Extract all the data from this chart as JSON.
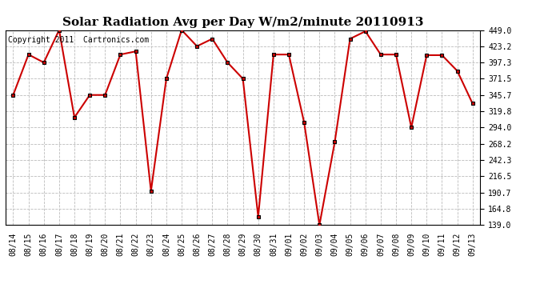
{
  "title": "Solar Radiation Avg per Day W/m2/minute 20110913",
  "copyright": "Copyright 2011  Cartronics.com",
  "x_labels": [
    "08/14",
    "08/15",
    "08/16",
    "08/17",
    "08/18",
    "08/19",
    "08/20",
    "08/21",
    "08/22",
    "08/23",
    "08/24",
    "08/25",
    "08/26",
    "08/27",
    "08/28",
    "08/29",
    "08/30",
    "08/31",
    "09/01",
    "09/02",
    "09/03",
    "09/04",
    "09/05",
    "09/06",
    "09/07",
    "09/08",
    "09/09",
    "09/10",
    "09/11",
    "09/12",
    "09/13"
  ],
  "y_values": [
    345.7,
    410.0,
    397.3,
    449.0,
    310.0,
    345.7,
    345.7,
    410.0,
    415.0,
    193.0,
    371.5,
    449.0,
    423.2,
    435.0,
    397.3,
    371.5,
    152.0,
    410.0,
    410.0,
    302.0,
    139.0,
    271.0,
    435.0,
    447.0,
    410.0,
    410.0,
    294.0,
    409.0,
    409.0,
    384.0,
    332.0
  ],
  "y_ticks": [
    139.0,
    164.8,
    190.7,
    216.5,
    242.3,
    268.2,
    294.0,
    319.8,
    345.7,
    371.5,
    397.3,
    423.2,
    449.0
  ],
  "y_min": 139.0,
  "y_max": 449.0,
  "line_color": "#cc0000",
  "marker_color": "#000000",
  "grid_color": "#bbbbbb",
  "bg_color": "#ffffff",
  "title_fontsize": 11,
  "tick_fontsize": 7,
  "copyright_fontsize": 7
}
